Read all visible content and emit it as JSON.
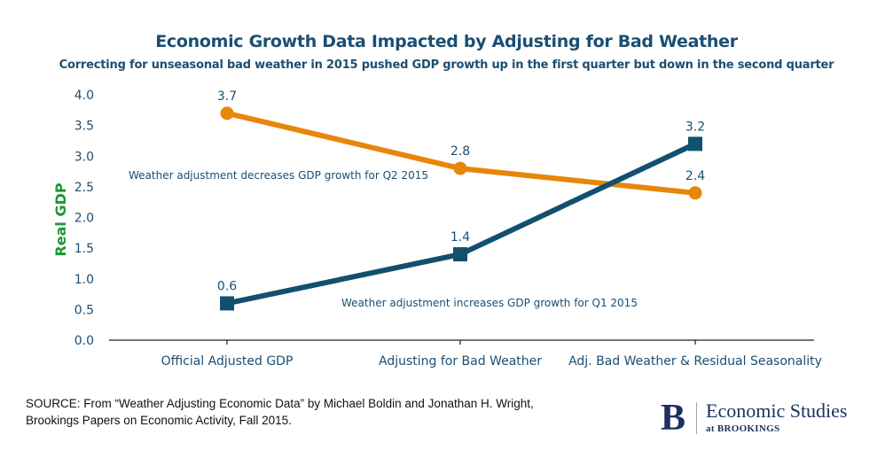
{
  "chart_data": {
    "type": "line",
    "title": "Economic Growth Data Impacted by Adjusting for Bad Weather",
    "subtitle": "Correcting for unseasonal bad weather in 2015 pushed GDP growth up in the first quarter but down in the second quarter",
    "xlabel": "",
    "ylabel": "Real GDP",
    "ylim": [
      0,
      4.0
    ],
    "yticks": [
      "0.0",
      "0.5",
      "1.0",
      "1.5",
      "2.0",
      "2.5",
      "3.0",
      "3.5",
      "4.0"
    ],
    "categories": [
      "Official Adjusted GDP",
      "Adjusting for Bad Weather",
      "Adj. Bad Weather & Residual Seasonality"
    ],
    "grid": false,
    "series": [
      {
        "name": "Q2 2015",
        "color": "#e8860a",
        "marker": "circle",
        "values": [
          3.7,
          2.8,
          2.4
        ],
        "labels": [
          "3.7",
          "2.8",
          "2.4"
        ]
      },
      {
        "name": "Q1 2015",
        "color": "#12506f",
        "marker": "square",
        "values": [
          0.6,
          1.4,
          3.2
        ],
        "labels": [
          "0.6",
          "1.4",
          "3.2"
        ]
      }
    ],
    "annotations": [
      {
        "text": "Weather adjustment decreases GDP growth for Q2 2015",
        "series": "Q2 2015"
      },
      {
        "text": "Weather adjustment increases GDP growth for Q1 2015",
        "series": "Q1 2015"
      }
    ]
  },
  "colors": {
    "title": "#1b4f72",
    "ylabel": "#1e9632",
    "tick_text": "#1b4f72",
    "logo": "#1c2f5e"
  },
  "source": {
    "line1": "SOURCE: From “Weather Adjusting Economic Data” by Michael Boldin and Jonathan H. Wright,",
    "line2": "Brookings Papers on Economic Activity, Fall 2015."
  },
  "logo": {
    "letter": "B",
    "main": "Economic Studies",
    "sub": "at BROOKINGS"
  }
}
